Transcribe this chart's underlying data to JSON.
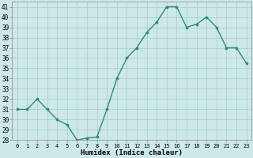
{
  "x": [
    0,
    1,
    2,
    3,
    4,
    5,
    6,
    7,
    8,
    9,
    10,
    11,
    12,
    13,
    14,
    15,
    16,
    17,
    18,
    19,
    20,
    21,
    22,
    23
  ],
  "y": [
    31,
    31,
    32,
    31,
    30,
    29.5,
    28,
    28.2,
    28.3,
    31,
    34,
    36,
    37,
    38.5,
    39.5,
    41,
    41,
    39,
    39.3,
    40,
    39,
    37,
    37,
    35.5
  ],
  "xlabel": "Humidex (Indice chaleur)",
  "xlim": [
    -0.5,
    23.5
  ],
  "ylim": [
    28,
    41.5
  ],
  "yticks": [
    28,
    29,
    30,
    31,
    32,
    33,
    34,
    35,
    36,
    37,
    38,
    39,
    40,
    41
  ],
  "xticks": [
    0,
    1,
    2,
    3,
    4,
    5,
    6,
    7,
    8,
    9,
    10,
    11,
    12,
    13,
    14,
    15,
    16,
    17,
    18,
    19,
    20,
    21,
    22,
    23
  ],
  "line_color": "#2e8b7a",
  "marker_color": "#2e8b7a",
  "bg_color": "#cce8e8",
  "grid_color": "#b0d0d0",
  "font_family": "monospace"
}
